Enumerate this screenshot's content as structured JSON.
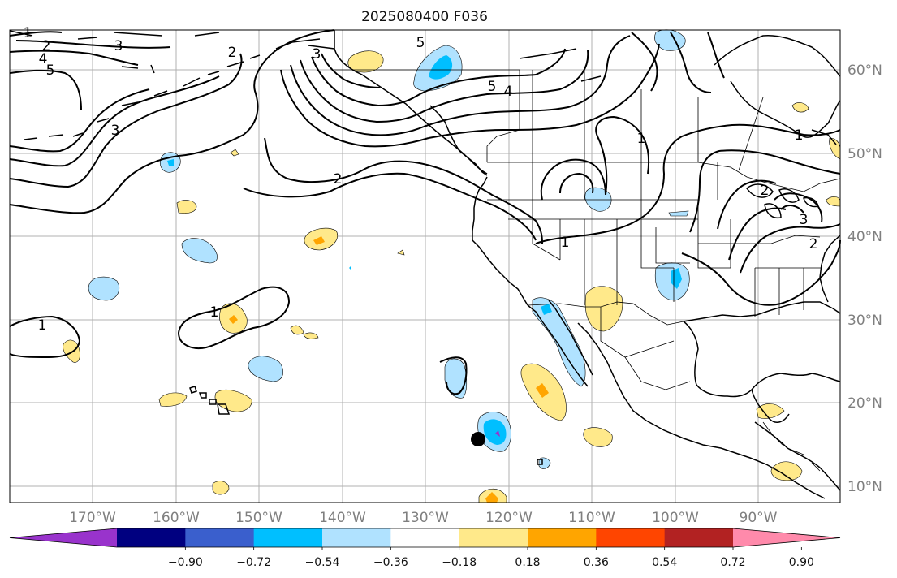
{
  "title": "2025080400 F036",
  "lon_labels": [
    "170°W",
    "160°W",
    "150°W",
    "140°W",
    "130°W",
    "120°W",
    "110°W",
    "100°W",
    "90°W"
  ],
  "lat_labels": [
    "60°N",
    "50°N",
    "40°N",
    "30°N",
    "20°N",
    "10°N"
  ],
  "colorbar": {
    "ticks": [
      "−0.90",
      "−0.72",
      "−0.54",
      "−0.36",
      "−0.18",
      "0.18",
      "0.36",
      "0.54",
      "0.72",
      "0.90"
    ],
    "colors": [
      "#9933cc",
      "#000080",
      "#3a5fcd",
      "#00bfff",
      "#b0e2ff",
      "#ffffff",
      "#ffe98a",
      "#ffa500",
      "#ff4500",
      "#b22222",
      "#ff8aab"
    ]
  },
  "contour_labels": [
    "1",
    "2",
    "3",
    "4",
    "5",
    "5",
    "4",
    "3",
    "2",
    "2",
    "1",
    "1",
    "1",
    "2",
    "3",
    "2",
    "1",
    "1",
    "3",
    "5"
  ],
  "colors": {
    "grid": "#b0b0b0",
    "tick_label": "#7f7f7f",
    "positive_light": "#ffe98a",
    "positive_mid": "#ffa500",
    "negative_light": "#b0e2ff",
    "negative_mid": "#00bfff",
    "negative_dark": "#9933cc",
    "marker": "#000000"
  },
  "marker": {
    "name": "storm-position-dot",
    "lon": -123,
    "lat": 15.5
  }
}
